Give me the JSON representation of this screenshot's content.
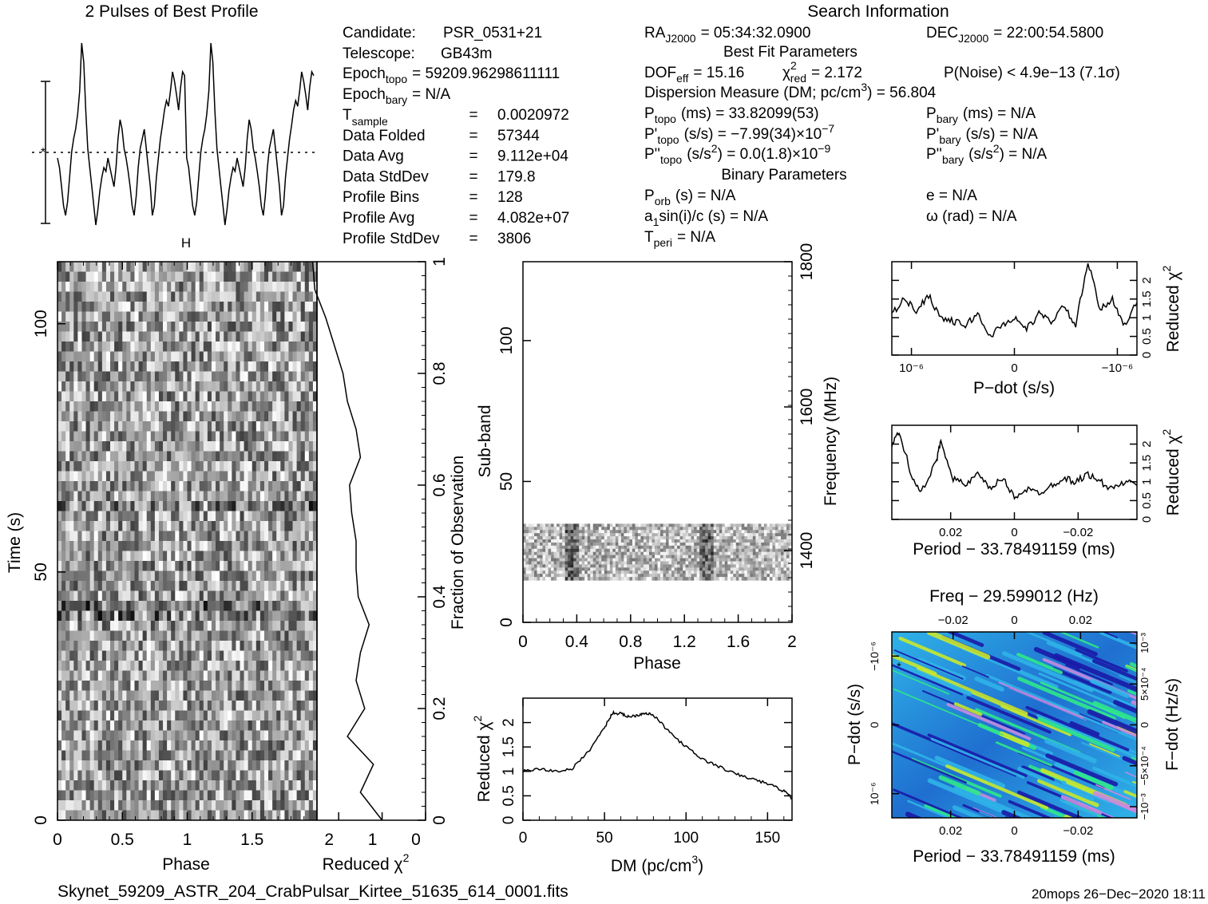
{
  "header": {
    "profile_title": "2 Pulses of Best Profile",
    "search_title": "Search Information",
    "best_fit_title": "Best Fit Parameters",
    "binary_title": "Binary Parameters"
  },
  "search_info": {
    "candidate": {
      "label": "Candidate:",
      "value": "PSR_0531+21"
    },
    "telescope": {
      "label": "Telescope:",
      "value": "GB43m"
    },
    "epoch_topo": {
      "label": "Epoch",
      "sub": "topo",
      "value": "= 59209.96298611111"
    },
    "epoch_bary": {
      "label": "Epoch",
      "sub": "bary",
      "value": "= N/A"
    },
    "rows": [
      {
        "label": "T",
        "sub": "sample",
        "eq": "=",
        "value": "0.0020972"
      },
      {
        "label": "Data Folded",
        "sub": "",
        "eq": "=",
        "value": "57344"
      },
      {
        "label": "Data Avg",
        "sub": "",
        "eq": "=",
        "value": "9.112e+04"
      },
      {
        "label": "Data StdDev",
        "sub": "",
        "eq": "=",
        "value": "179.8"
      },
      {
        "label": "Profile Bins",
        "sub": "",
        "eq": "=",
        "value": "128"
      },
      {
        "label": "Profile Avg",
        "sub": "",
        "eq": "=",
        "value": "4.082e+07"
      },
      {
        "label": "Profile StdDev",
        "sub": "",
        "eq": "=",
        "value": "3806"
      }
    ]
  },
  "coords": {
    "ra": {
      "label": "RA",
      "sub": "J2000",
      "value": "= 05:34:32.0900"
    },
    "dec": {
      "label": "DEC",
      "sub": "J2000",
      "value": "= 22:00:54.5800"
    }
  },
  "best_fit": {
    "dof": {
      "label": "DOF",
      "sub": "eff",
      "value": "= 15.16"
    },
    "chi": {
      "label": "χ",
      "sup": "2",
      "sub": "red",
      "value": "= 2.172"
    },
    "pnoise": "P(Noise) < 4.9e−13   (7.1σ)",
    "dm": {
      "text": "Dispersion Measure (DM; pc/cm",
      "sup": "3",
      "tail": ") = 56.804"
    },
    "p_topo": {
      "label": "P",
      "sub": "topo",
      "value": "(ms) =  33.82099(53)"
    },
    "pd_topo": {
      "label": "P'",
      "sub": "topo",
      "value": "(s/s) = −7.99(34)×10",
      "exp": "−7"
    },
    "pdd_topo": {
      "label": "P''",
      "sub": "topo",
      "value": "(s/s",
      "sup": "2",
      "tail": ") = 0.0(1.8)×10",
      "exp": "−9"
    },
    "p_bary": {
      "label": "P",
      "sub": "bary",
      "value": "(ms) = N/A"
    },
    "pd_bary": {
      "label": "P'",
      "sub": "bary",
      "value": "(s/s) = N/A"
    },
    "pdd_bary": {
      "label": "P''",
      "sub": "bary",
      "value": "(s/s",
      "sup": "2",
      "tail": ") = N/A"
    }
  },
  "binary": {
    "porb": {
      "label": "P",
      "sub": "orb",
      "value": "(s) = N/A"
    },
    "a1": {
      "label": "a",
      "sub": "1",
      "value": "sin(i)/c (s) = N/A"
    },
    "tperi": {
      "label": "T",
      "sub": "peri",
      "value": "= N/A"
    },
    "e": "e = N/A",
    "omega": "ω (rad) = N/A"
  },
  "footer": {
    "filename": "Skynet_59209_ASTR_204_CrabPulsar_Kirtee_51635_614_0001.fits",
    "stamp": "20mops 26−Dec−2020 18:11"
  },
  "colors": {
    "ink": "#000000",
    "background": "#ffffff",
    "ppdot_low": "#1a1aa8",
    "ppdot_mid": "#2fb3e8",
    "ppdot_high": "#2ee88a",
    "ppdot_peak": "#c8e82e",
    "ppdot_pink": "#c98adf"
  },
  "chart_data": [
    {
      "id": "profile",
      "type": "line",
      "title": "2 Pulses of Best Profile",
      "x": {
        "range": [
          0,
          2
        ]
      },
      "series": [
        {
          "values_phase_0_1": [
            0.35,
            0.3,
            0.2,
            0.1,
            0.05,
            0.12,
            0.25,
            0.38,
            0.45,
            0.5,
            0.58,
            0.7,
            0.95,
            0.85,
            0.6,
            0.4,
            0.3,
            0.2,
            0.1,
            0.0,
            0.08,
            0.18,
            0.25,
            0.3,
            0.28,
            0.35,
            0.3,
            0.25,
            0.2,
            0.3,
            0.45,
            0.55,
            0.5,
            0.4,
            0.35,
            0.28,
            0.2,
            0.1,
            0.05,
            0.15,
            0.3,
            0.4,
            0.45,
            0.5,
            0.4,
            0.3,
            0.2,
            0.05,
            0.1,
            0.25,
            0.35,
            0.45,
            0.52,
            0.6,
            0.65,
            0.62,
            0.7,
            0.8,
            0.75,
            0.68,
            0.6,
            0.72,
            0.8,
            0.78
          ]
        }
      ]
    },
    {
      "id": "time_phase",
      "type": "heatmap",
      "title": "",
      "xlabel": "Phase",
      "ylabel": "Time (s)",
      "xlim": [
        0,
        2
      ],
      "ylim": [
        0,
        120
      ],
      "x_ticks": [
        "0",
        "0.5",
        "1",
        "1.5"
      ],
      "y_ticks": [
        "0",
        "50",
        "100"
      ],
      "right_ylabel": "Fraction of Observation",
      "right_ticks": [
        "0",
        "0.2",
        "0.4",
        "0.6",
        "0.8",
        "1"
      ]
    },
    {
      "id": "time_chi",
      "type": "line",
      "title": "",
      "xlabel": "Reduced χ",
      "xlabel_sup": "2",
      "xlim": [
        2.5,
        0
      ],
      "x_ticks": [
        "2",
        "1",
        "0"
      ],
      "series": [
        {
          "name": "",
          "fraction": [
            0,
            0.05,
            0.1,
            0.15,
            0.2,
            0.25,
            0.3,
            0.35,
            0.4,
            0.45,
            0.5,
            0.55,
            0.6,
            0.65,
            0.7,
            0.75,
            0.8,
            0.85,
            0.9,
            0.95,
            1.0
          ],
          "values": [
            1.0,
            1.5,
            1.2,
            1.8,
            1.4,
            1.6,
            1.5,
            1.3,
            1.55,
            1.6,
            1.6,
            1.7,
            1.75,
            1.5,
            1.6,
            1.8,
            1.9,
            2.1,
            2.3,
            2.55,
            2.6
          ]
        }
      ]
    },
    {
      "id": "subband_phase",
      "type": "heatmap",
      "title": "",
      "xlabel": "Phase",
      "ylabel": "Sub-band",
      "right_ylabel": "Frequency (MHz)",
      "xlim": [
        0,
        2
      ],
      "ylim": [
        0,
        128
      ],
      "x_ticks": [
        "0",
        "0.4",
        "0.8",
        "1.2",
        "1.6",
        "2"
      ],
      "y_ticks": [
        "0",
        "50",
        "100"
      ],
      "right_ticks": [
        "1400",
        "1600",
        "1800"
      ],
      "filled_subbands": [
        15,
        35
      ]
    },
    {
      "id": "dm_chi",
      "type": "line",
      "title": "",
      "xlabel": "DM (pc/cm",
      "xlabel_sup": "3",
      "xlabel_tail": ")",
      "ylabel": "Reduced χ",
      "ylabel_sup": "2",
      "xlim": [
        0,
        165
      ],
      "ylim": [
        0,
        2.5
      ],
      "x_ticks": [
        "0",
        "50",
        "100",
        "150"
      ],
      "y_ticks": [
        "0",
        "0.5",
        "1",
        "1.5",
        "2"
      ],
      "series": [
        {
          "name": "",
          "x": [
            0,
            10,
            20,
            30,
            40,
            50,
            55,
            60,
            65,
            70,
            75,
            80,
            90,
            100,
            110,
            120,
            130,
            140,
            150,
            160,
            165
          ],
          "y": [
            1.0,
            1.05,
            1.0,
            1.05,
            1.4,
            1.9,
            2.2,
            2.18,
            2.12,
            2.15,
            2.2,
            2.15,
            1.8,
            1.5,
            1.25,
            1.1,
            0.95,
            0.85,
            0.75,
            0.6,
            0.45
          ]
        }
      ]
    },
    {
      "id": "pdot_chi",
      "type": "line",
      "title": "",
      "xlabel": "P−dot (s/s)",
      "ylabel": "Reduced χ",
      "ylabel_sup": "2",
      "xlim": [
        1.2e-06,
        -1.2e-06
      ],
      "ylim": [
        0,
        2.5
      ],
      "x_ticks": [
        "10⁻⁶",
        "0",
        "−10⁻⁶"
      ],
      "y_ticks": [
        "0",
        "0.5",
        "1",
        "1.5",
        "2"
      ],
      "series": [
        {
          "name": "",
          "x_fraction": [
            0,
            0.05,
            0.1,
            0.15,
            0.2,
            0.25,
            0.3,
            0.35,
            0.4,
            0.45,
            0.5,
            0.55,
            0.6,
            0.65,
            0.7,
            0.75,
            0.8,
            0.85,
            0.9,
            0.95,
            1.0
          ],
          "y": [
            1.1,
            1.5,
            1.2,
            1.6,
            1.0,
            0.9,
            0.8,
            1.1,
            0.5,
            0.8,
            1.0,
            0.7,
            1.1,
            0.9,
            1.3,
            0.8,
            2.5,
            1.2,
            1.5,
            0.8,
            1.4
          ]
        }
      ]
    },
    {
      "id": "period_chi",
      "type": "line",
      "title": "",
      "xlabel": "Period − 33.78491159 (ms)",
      "ylabel": "Reduced χ",
      "ylabel_sup": "2",
      "xlim": [
        0.04,
        -0.04
      ],
      "ylim": [
        0,
        2.5
      ],
      "x_ticks": [
        "0.02",
        "0",
        "−0.02"
      ],
      "y_ticks": [
        "0",
        "0.5",
        "1",
        "1.5",
        "2"
      ],
      "series": [
        {
          "name": "",
          "x_fraction": [
            0,
            0.03,
            0.08,
            0.12,
            0.18,
            0.2,
            0.25,
            0.3,
            0.35,
            0.4,
            0.45,
            0.5,
            0.55,
            0.6,
            0.65,
            0.7,
            0.75,
            0.8,
            0.85,
            0.9,
            0.95,
            1.0
          ],
          "y": [
            2.0,
            2.3,
            1.2,
            0.7,
            1.5,
            2.1,
            1.1,
            0.9,
            1.2,
            0.8,
            1.1,
            0.6,
            0.8,
            0.7,
            0.9,
            1.1,
            1.0,
            1.2,
            1.0,
            0.8,
            1.0,
            0.9
          ]
        }
      ]
    },
    {
      "id": "p_pdot",
      "type": "heatmap",
      "title": "Freq − 29.599012 (Hz)",
      "xlabel": "Period − 33.78491159 (ms)",
      "ylabel": "P−dot (s/s)",
      "right_ylabel": "F−dot (Hz/s)",
      "x_ticks": [
        "0.02",
        "0",
        "−0.02"
      ],
      "top_ticks": [
        "−0.02",
        "0",
        "0.02"
      ],
      "left_ticks": [
        "−10⁻⁶",
        "0",
        "10⁻⁶"
      ],
      "right_ticks": [
        "10⁻³",
        "5×10⁻⁴",
        "0",
        "−5×10⁻⁴",
        "−10⁻³"
      ]
    }
  ]
}
